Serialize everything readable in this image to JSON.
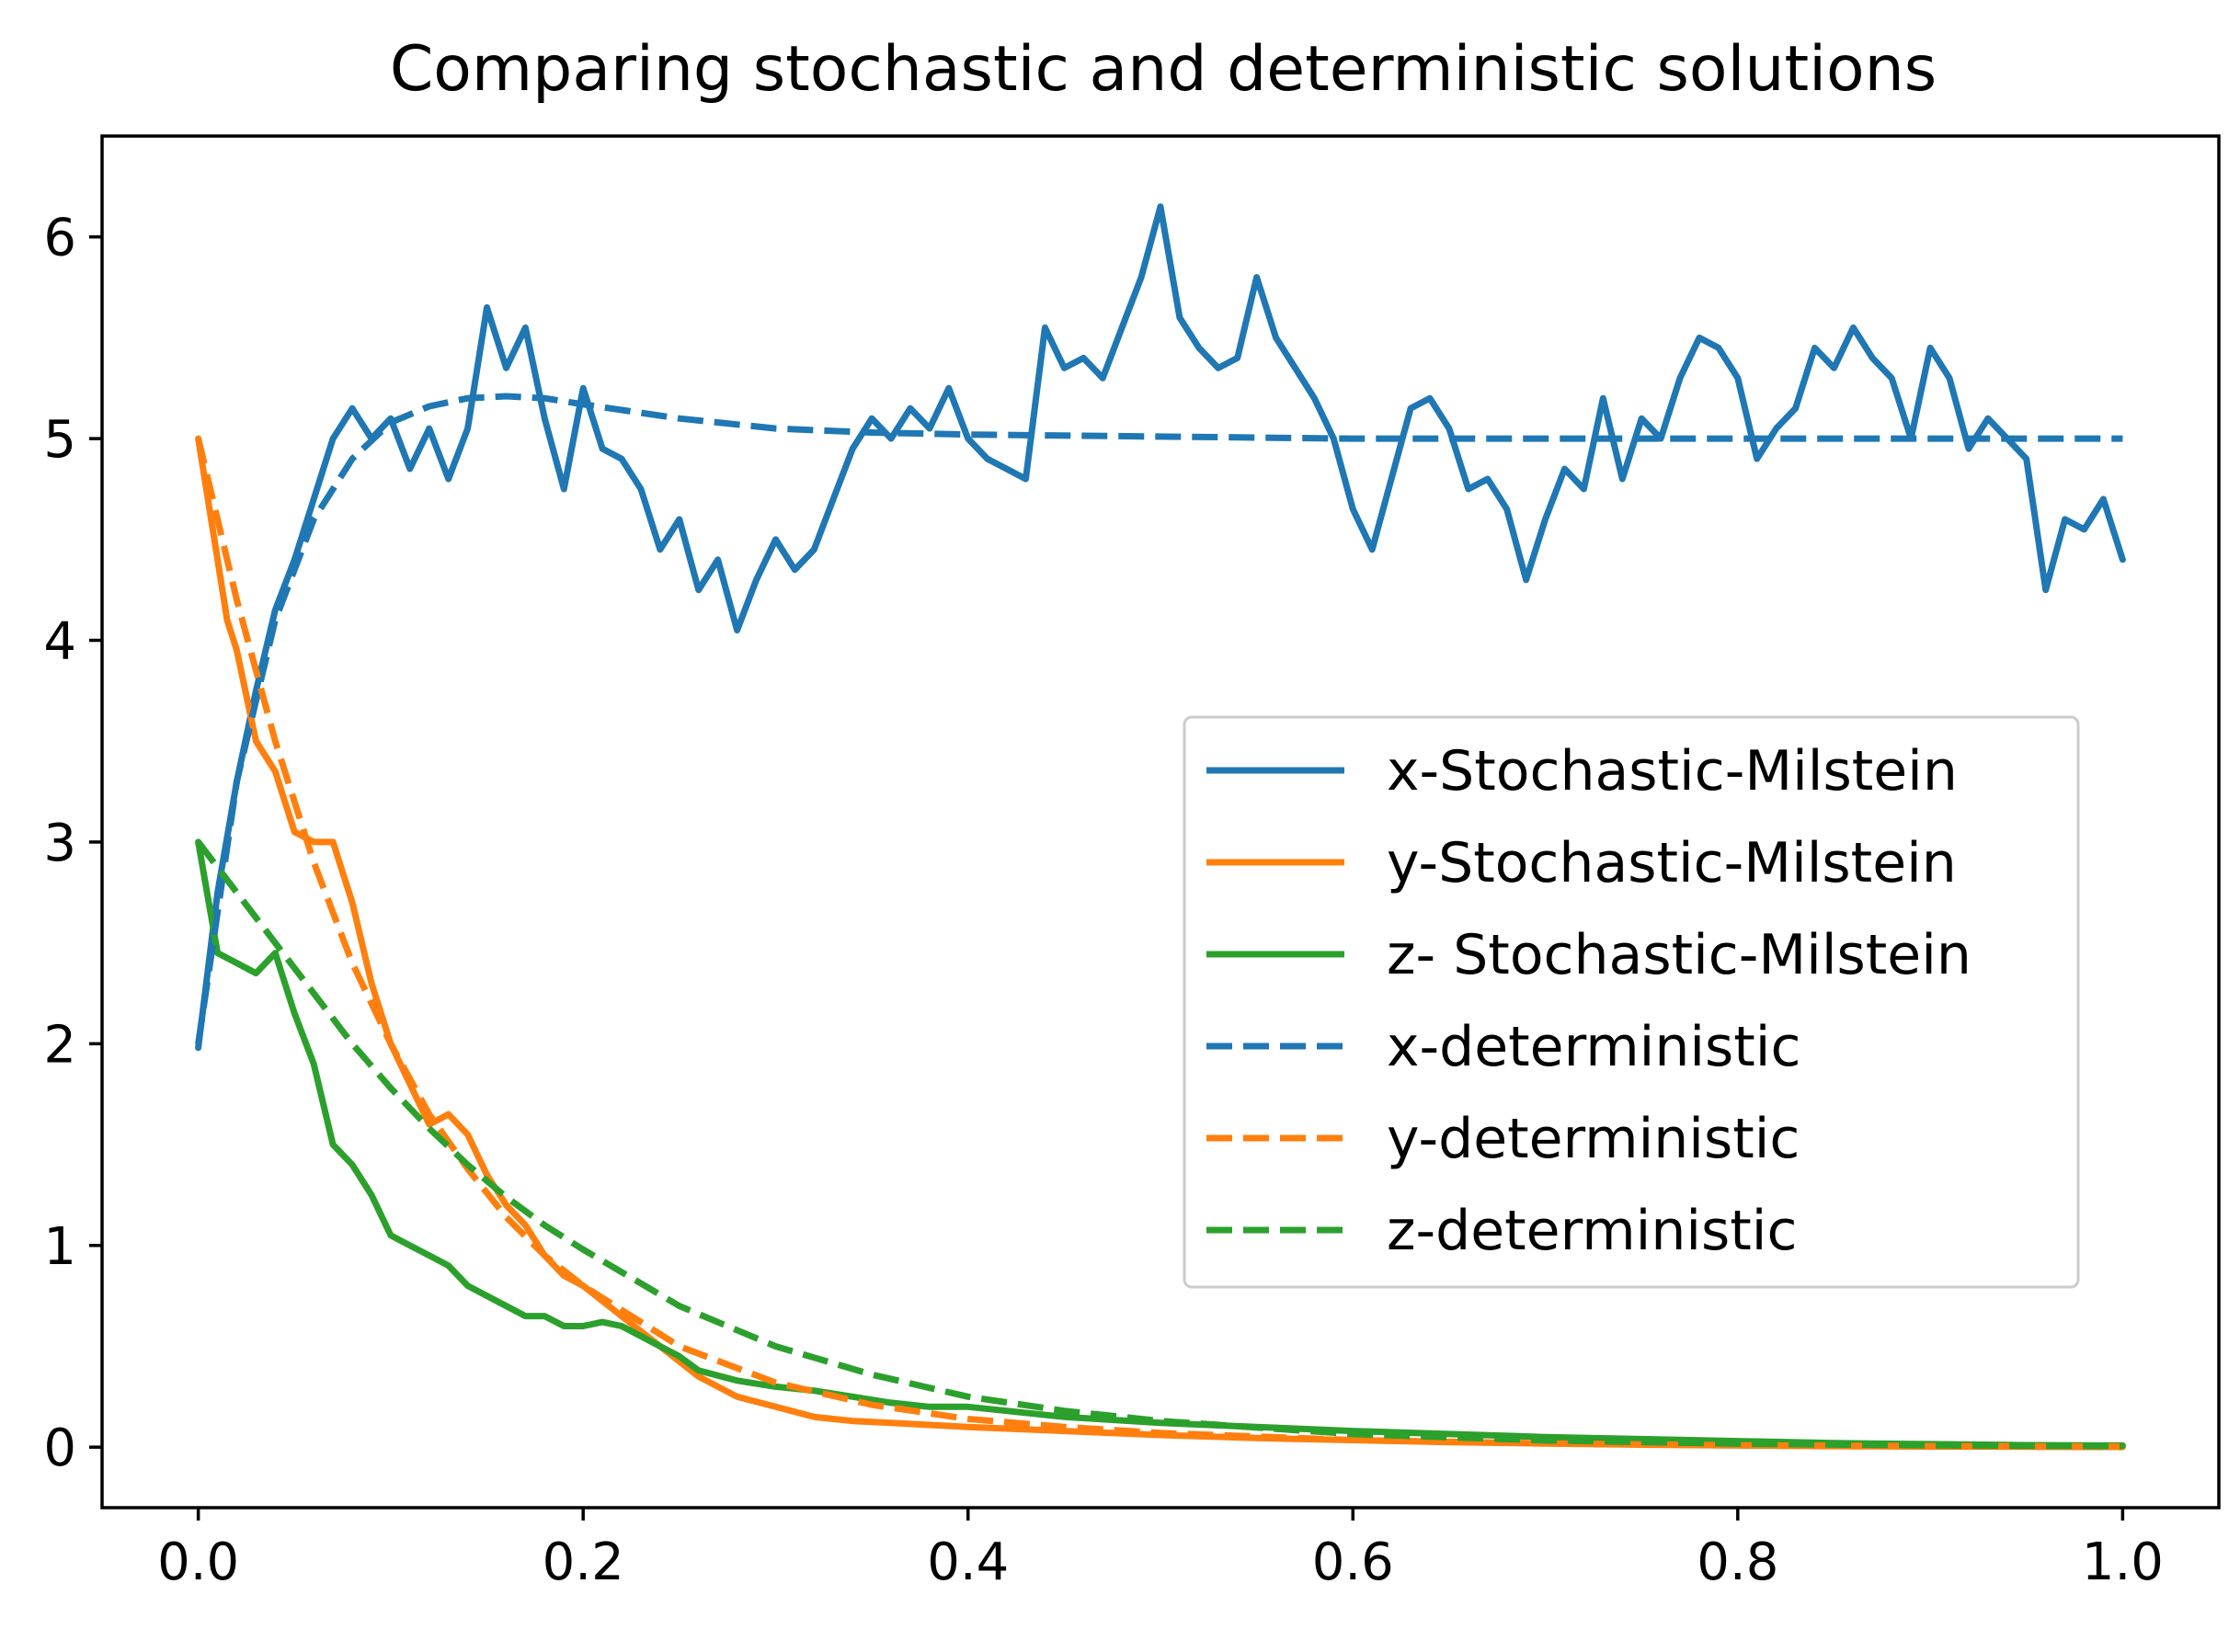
{
  "chart_data": {
    "type": "line",
    "title": "Comparing stochastic and deterministic solutions",
    "xlabel": "",
    "ylabel": "",
    "xlim": [
      -0.05,
      1.05
    ],
    "ylim": [
      -0.3,
      6.5
    ],
    "grid": false,
    "legend_position": "center-right",
    "xticks": [
      0.0,
      0.2,
      0.4,
      0.6,
      0.8,
      1.0
    ],
    "xtick_labels": [
      "0.0",
      "0.2",
      "0.4",
      "0.6",
      "0.8",
      "1.0"
    ],
    "yticks": [
      0,
      1,
      2,
      3,
      4,
      5,
      6
    ],
    "ytick_labels": [
      "0",
      "1",
      "2",
      "3",
      "4",
      "5",
      "6"
    ],
    "series": [
      {
        "name": "x-Stochastic-Milstein",
        "color": "#1f77b4",
        "style": "solid",
        "x": [
          0.0,
          0.01,
          0.02,
          0.03,
          0.04,
          0.05,
          0.06,
          0.07,
          0.08,
          0.09,
          0.1,
          0.11,
          0.12,
          0.13,
          0.14,
          0.15,
          0.16,
          0.17,
          0.18,
          0.19,
          0.2,
          0.21,
          0.22,
          0.23,
          0.24,
          0.25,
          0.26,
          0.27,
          0.28,
          0.29,
          0.3,
          0.31,
          0.32,
          0.33,
          0.34,
          0.35,
          0.36,
          0.37,
          0.38,
          0.39,
          0.4,
          0.41,
          0.42,
          0.43,
          0.44,
          0.45,
          0.46,
          0.47,
          0.48,
          0.49,
          0.5,
          0.51,
          0.52,
          0.53,
          0.54,
          0.55,
          0.56,
          0.57,
          0.58,
          0.59,
          0.6,
          0.61,
          0.62,
          0.63,
          0.64,
          0.65,
          0.66,
          0.67,
          0.68,
          0.69,
          0.7,
          0.71,
          0.72,
          0.73,
          0.74,
          0.75,
          0.76,
          0.77,
          0.78,
          0.79,
          0.8,
          0.81,
          0.82,
          0.83,
          0.84,
          0.85,
          0.86,
          0.87,
          0.88,
          0.89,
          0.9,
          0.91,
          0.92,
          0.93,
          0.94,
          0.95,
          0.96,
          0.97,
          0.98,
          0.99,
          1.0
        ],
        "y": [
          1.98,
          2.75,
          3.3,
          3.75,
          4.15,
          4.4,
          4.7,
          5.0,
          5.15,
          5.0,
          5.1,
          4.85,
          5.05,
          4.8,
          5.05,
          5.65,
          5.35,
          5.55,
          5.1,
          4.75,
          5.25,
          4.95,
          4.9,
          4.75,
          4.45,
          4.6,
          4.25,
          4.4,
          4.05,
          4.3,
          4.5,
          4.35,
          4.45,
          4.7,
          4.95,
          5.1,
          5.0,
          5.15,
          5.05,
          5.25,
          5.0,
          4.9,
          4.85,
          4.8,
          5.55,
          5.35,
          5.4,
          5.3,
          5.55,
          5.8,
          6.15,
          5.6,
          5.45,
          5.35,
          5.4,
          5.8,
          5.5,
          5.35,
          5.2,
          5.0,
          4.65,
          4.45,
          4.8,
          5.15,
          5.2,
          5.05,
          4.75,
          4.8,
          4.65,
          4.3,
          4.6,
          4.85,
          4.75,
          5.2,
          4.8,
          5.1,
          5.0,
          5.3,
          5.5,
          5.45,
          5.3,
          4.9,
          5.05,
          5.15,
          5.45,
          5.35,
          5.55,
          5.4,
          5.3,
          5.0,
          5.45,
          5.3,
          4.95,
          5.1,
          5.0,
          4.9,
          4.25,
          4.6,
          4.55,
          4.7,
          4.4
        ]
      },
      {
        "name": "y-Stochastic-Milstein",
        "color": "#ff7f0e",
        "style": "solid",
        "x": [
          0.0,
          0.01,
          0.015,
          0.02,
          0.03,
          0.04,
          0.05,
          0.06,
          0.07,
          0.08,
          0.09,
          0.1,
          0.11,
          0.12,
          0.13,
          0.14,
          0.15,
          0.16,
          0.17,
          0.18,
          0.19,
          0.2,
          0.22,
          0.24,
          0.26,
          0.28,
          0.3,
          0.32,
          0.34,
          0.36,
          0.38,
          0.4,
          0.45,
          0.5,
          0.55,
          0.6,
          0.65,
          0.7,
          0.75,
          0.8,
          0.85,
          0.9,
          0.95,
          1.0
        ],
        "y": [
          5.0,
          4.4,
          4.1,
          3.95,
          3.5,
          3.35,
          3.05,
          3.0,
          3.0,
          2.7,
          2.3,
          2.0,
          1.8,
          1.6,
          1.65,
          1.55,
          1.35,
          1.2,
          1.1,
          0.95,
          0.85,
          0.8,
          0.65,
          0.5,
          0.35,
          0.25,
          0.2,
          0.15,
          0.13,
          0.12,
          0.11,
          0.1,
          0.08,
          0.06,
          0.045,
          0.035,
          0.025,
          0.018,
          0.012,
          0.008,
          0.005,
          0.003,
          0.002,
          0.001
        ]
      },
      {
        "name": "z- Stochastic-Milstein",
        "color": "#2ca02c",
        "style": "solid",
        "x": [
          0.0,
          0.01,
          0.02,
          0.03,
          0.04,
          0.05,
          0.06,
          0.07,
          0.08,
          0.09,
          0.1,
          0.11,
          0.12,
          0.13,
          0.14,
          0.15,
          0.16,
          0.17,
          0.18,
          0.19,
          0.2,
          0.21,
          0.22,
          0.23,
          0.24,
          0.25,
          0.26,
          0.28,
          0.3,
          0.32,
          0.34,
          0.36,
          0.38,
          0.4,
          0.42,
          0.45,
          0.5,
          0.55,
          0.6,
          0.65,
          0.7,
          0.75,
          0.8,
          0.85,
          0.9,
          0.95,
          1.0
        ],
        "y": [
          3.0,
          2.45,
          2.4,
          2.35,
          2.45,
          2.15,
          1.9,
          1.5,
          1.4,
          1.25,
          1.05,
          1.0,
          0.95,
          0.9,
          0.8,
          0.75,
          0.7,
          0.65,
          0.65,
          0.6,
          0.6,
          0.62,
          0.6,
          0.55,
          0.5,
          0.45,
          0.38,
          0.33,
          0.3,
          0.28,
          0.25,
          0.22,
          0.2,
          0.2,
          0.18,
          0.15,
          0.12,
          0.1,
          0.08,
          0.065,
          0.05,
          0.04,
          0.03,
          0.02,
          0.015,
          0.01,
          0.008
        ]
      },
      {
        "name": "x-deterministic",
        "color": "#1f77b4",
        "style": "dashed",
        "x": [
          0.0,
          0.02,
          0.04,
          0.06,
          0.08,
          0.1,
          0.12,
          0.14,
          0.16,
          0.18,
          0.2,
          0.25,
          0.3,
          0.35,
          0.4,
          0.5,
          0.6,
          0.7,
          0.8,
          0.9,
          1.0
        ],
        "y": [
          2.0,
          3.3,
          4.1,
          4.6,
          4.9,
          5.08,
          5.16,
          5.2,
          5.21,
          5.2,
          5.17,
          5.1,
          5.05,
          5.03,
          5.02,
          5.01,
          5.0,
          5.0,
          5.0,
          5.0,
          5.0
        ]
      },
      {
        "name": "y-deterministic",
        "color": "#ff7f0e",
        "style": "dashed",
        "x": [
          0.0,
          0.02,
          0.04,
          0.06,
          0.08,
          0.1,
          0.12,
          0.14,
          0.16,
          0.18,
          0.2,
          0.25,
          0.3,
          0.35,
          0.4,
          0.45,
          0.5,
          0.6,
          0.7,
          0.8,
          0.9,
          1.0
        ],
        "y": [
          5.0,
          4.2,
          3.5,
          2.9,
          2.4,
          2.0,
          1.65,
          1.38,
          1.14,
          0.95,
          0.8,
          0.5,
          0.32,
          0.21,
          0.14,
          0.1,
          0.07,
          0.035,
          0.018,
          0.009,
          0.005,
          0.003
        ]
      },
      {
        "name": "z-deterministic",
        "color": "#2ca02c",
        "style": "dashed",
        "x": [
          0.0,
          0.02,
          0.04,
          0.06,
          0.08,
          0.1,
          0.12,
          0.14,
          0.16,
          0.18,
          0.2,
          0.25,
          0.3,
          0.35,
          0.4,
          0.45,
          0.5,
          0.6,
          0.7,
          0.8,
          0.9,
          1.0
        ],
        "y": [
          3.0,
          2.75,
          2.5,
          2.25,
          2.0,
          1.78,
          1.58,
          1.4,
          1.24,
          1.1,
          0.98,
          0.7,
          0.5,
          0.36,
          0.25,
          0.18,
          0.13,
          0.065,
          0.033,
          0.017,
          0.009,
          0.005
        ]
      }
    ]
  }
}
